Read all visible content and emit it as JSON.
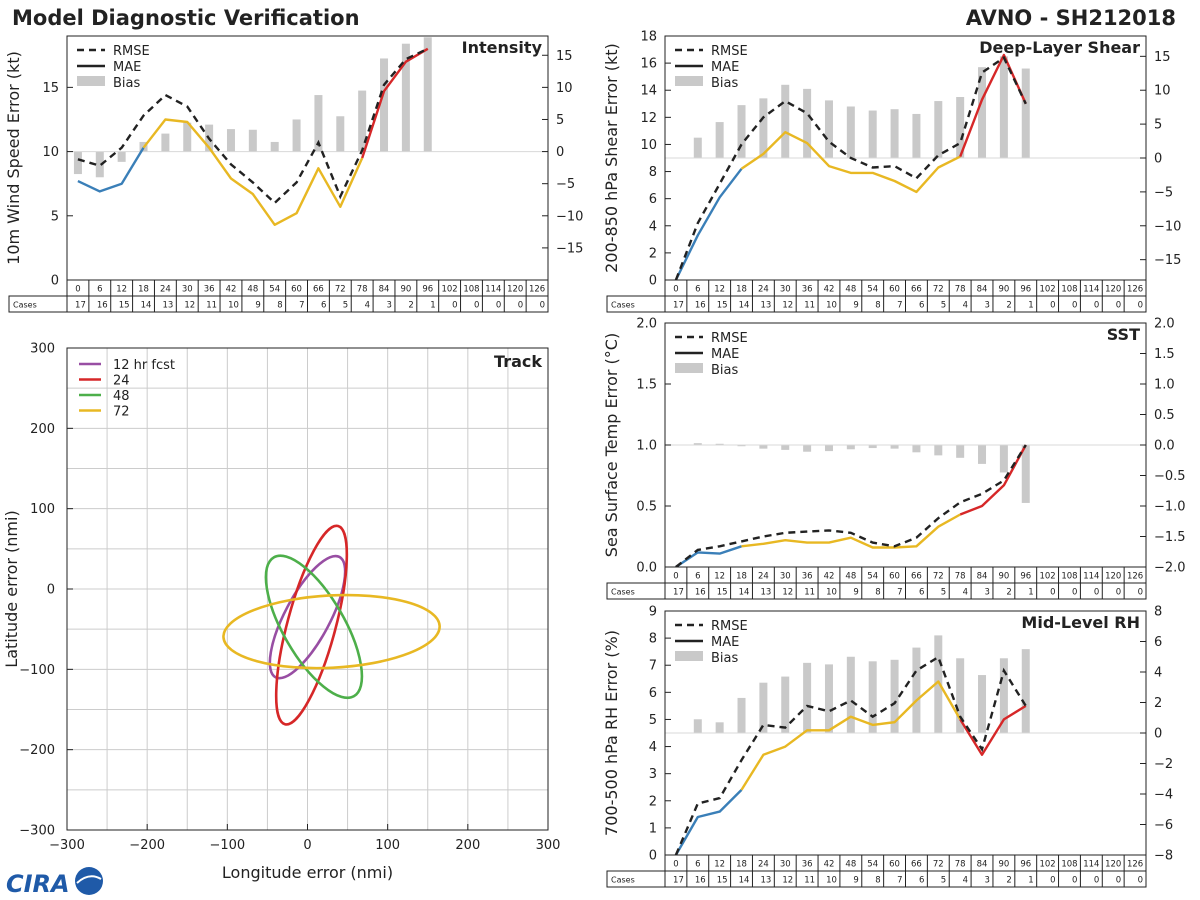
{
  "header": {
    "title": "Model Diagnostic Verification",
    "model_id": "AVNO - SH212018"
  },
  "forecast_hours": [
    "0",
    "6",
    "12",
    "18",
    "24",
    "30",
    "36",
    "42",
    "48",
    "54",
    "60",
    "66",
    "72",
    "78",
    "84",
    "90",
    "96",
    "102",
    "108",
    "114",
    "120",
    "126"
  ],
  "cases_label": "Cases",
  "cases": [
    17,
    16,
    15,
    14,
    13,
    12,
    11,
    10,
    9,
    8,
    7,
    6,
    5,
    4,
    3,
    2,
    1,
    0,
    0,
    0,
    0,
    0
  ],
  "legend": {
    "rmse": "RMSE",
    "mae": "MAE",
    "bias": "Bias"
  },
  "colors": {
    "rmse": "#222222",
    "mae_early": "#3a7fb8",
    "mae_mid": "#e8b823",
    "mae_late": "#d62728",
    "bias_bar": "#c9c9c9",
    "track_12": "#984ea3",
    "track_24": "#d62728",
    "track_48": "#4daf4a",
    "track_72": "#e8b823"
  },
  "logo_text": "CIRA",
  "chart_data": [
    {
      "id": "intensity",
      "type": "line",
      "title": "Intensity",
      "ylabel": "10m Wind Speed Error (kt)",
      "ylim": [
        0,
        19
      ],
      "yticks": [
        "0",
        "5",
        "10",
        "15"
      ],
      "yticks_values": [
        0,
        5,
        10,
        15
      ],
      "bias_lim": [
        -20,
        18
      ],
      "bias_ticks": [
        "−15",
        "−10",
        "−5",
        "0",
        "5",
        "10",
        "15"
      ],
      "bias_ticks_values": [
        -15,
        -10,
        -5,
        0,
        5,
        10,
        15
      ],
      "rmse": [
        9.4,
        8.9,
        10.3,
        12.8,
        14.4,
        13.5,
        11.0,
        9.0,
        7.6,
        6.0,
        7.6,
        10.7,
        6.5,
        10.1,
        15.2,
        17.2,
        18.0
      ],
      "mae": [
        7.7,
        6.9,
        7.5,
        10.3,
        12.5,
        12.3,
        10.3,
        7.9,
        6.7,
        4.3,
        5.2,
        8.7,
        5.7,
        9.5,
        14.7,
        17.0,
        18.0
      ],
      "bias": [
        -3.5,
        -4.0,
        -1.6,
        1.5,
        2.8,
        4.5,
        4.2,
        3.5,
        3.4,
        1.5,
        5.0,
        8.8,
        5.5,
        9.5,
        14.5,
        16.8,
        17.8
      ]
    },
    {
      "id": "shear",
      "type": "line",
      "title": "Deep-Layer Shear",
      "ylabel": "200-850 hPa Shear Error (kt)",
      "ylim": [
        0,
        18
      ],
      "yticks": [
        "0",
        "2",
        "4",
        "6",
        "8",
        "10",
        "12",
        "14",
        "16",
        "18"
      ],
      "yticks_values": [
        0,
        2,
        4,
        6,
        8,
        10,
        12,
        14,
        16,
        18
      ],
      "bias_lim": [
        -18,
        18
      ],
      "bias_ticks": [
        "−15",
        "−10",
        "−5",
        "0",
        "5",
        "10",
        "15"
      ],
      "bias_ticks_values": [
        -15,
        -10,
        -5,
        0,
        5,
        10,
        15
      ],
      "rmse": [
        0,
        4.2,
        7.1,
        10.0,
        12.0,
        13.2,
        12.3,
        10.2,
        9.0,
        8.3,
        8.4,
        7.5,
        9.2,
        10.1,
        15.3,
        16.4,
        13.0
      ],
      "mae": [
        0,
        3.3,
        6.1,
        8.2,
        9.3,
        10.9,
        10.1,
        8.4,
        7.9,
        7.9,
        7.3,
        6.5,
        8.3,
        9.1,
        13.3,
        16.6,
        13.0
      ],
      "bias": [
        0,
        3.0,
        5.3,
        7.8,
        8.8,
        10.8,
        10.2,
        8.5,
        7.6,
        7.0,
        7.2,
        6.5,
        8.4,
        9.0,
        13.4,
        15.0,
        13.2
      ]
    },
    {
      "id": "sst",
      "type": "line",
      "title": "SST",
      "ylabel": "Sea Surface Temp Error (°C)",
      "ylim": [
        0,
        2.0
      ],
      "yticks": [
        "0.0",
        "0.5",
        "1.0",
        "1.5",
        "2.0"
      ],
      "yticks_values": [
        0,
        0.5,
        1.0,
        1.5,
        2.0
      ],
      "bias_lim": [
        -2.0,
        2.0
      ],
      "bias_ticks": [
        "−2.0",
        "−1.5",
        "−1.0",
        "−0.5",
        "0.0",
        "0.5",
        "1.0",
        "1.5",
        "2.0"
      ],
      "bias_ticks_values": [
        -2.0,
        -1.5,
        -1.0,
        -0.5,
        0,
        0.5,
        1.0,
        1.5,
        2.0
      ],
      "rmse": [
        0,
        0.14,
        0.17,
        0.21,
        0.25,
        0.28,
        0.29,
        0.3,
        0.28,
        0.2,
        0.17,
        0.24,
        0.4,
        0.53,
        0.6,
        0.71,
        1.0
      ],
      "mae": [
        0,
        0.12,
        0.11,
        0.17,
        0.19,
        0.22,
        0.2,
        0.2,
        0.24,
        0.16,
        0.16,
        0.17,
        0.33,
        0.43,
        0.5,
        0.67,
        1.0
      ],
      "bias": [
        0,
        0.03,
        0.02,
        -0.02,
        -0.06,
        -0.08,
        -0.11,
        -0.1,
        -0.07,
        -0.05,
        -0.06,
        -0.12,
        -0.17,
        -0.21,
        -0.31,
        -0.45,
        -0.95
      ]
    },
    {
      "id": "rh",
      "type": "line",
      "title": "Mid-Level RH",
      "ylabel": "700-500 hPa RH Error (%)",
      "ylim": [
        0,
        9
      ],
      "yticks": [
        "0",
        "1",
        "2",
        "3",
        "4",
        "5",
        "6",
        "7",
        "8",
        "9"
      ],
      "yticks_values": [
        0,
        1,
        2,
        3,
        4,
        5,
        6,
        7,
        8,
        9
      ],
      "bias_lim": [
        -8,
        8
      ],
      "bias_ticks": [
        "−8",
        "−6",
        "−4",
        "−2",
        "0",
        "2",
        "4",
        "6",
        "8"
      ],
      "bias_ticks_values": [
        -8,
        -6,
        -4,
        -2,
        0,
        2,
        4,
        6,
        8
      ],
      "rmse": [
        0,
        1.9,
        2.1,
        3.5,
        4.8,
        4.7,
        5.5,
        5.3,
        5.7,
        5.1,
        5.6,
        6.8,
        7.3,
        5.1,
        3.9,
        6.8,
        5.5
      ],
      "mae": [
        0,
        1.4,
        1.6,
        2.4,
        3.7,
        4.0,
        4.6,
        4.6,
        5.1,
        4.8,
        4.9,
        5.7,
        6.4,
        5.0,
        3.7,
        5.0,
        5.5
      ],
      "bias": [
        0,
        0.9,
        0.7,
        2.3,
        3.3,
        3.7,
        4.6,
        4.5,
        5.0,
        4.7,
        4.8,
        5.6,
        6.4,
        4.9,
        3.8,
        4.9,
        5.5
      ]
    },
    {
      "id": "track",
      "type": "scatter",
      "title": "Track",
      "xlabel": "Longitude error (nmi)",
      "ylabel": "Latitude error (nmi)",
      "xlim": [
        -300,
        300
      ],
      "ylim": [
        -300,
        300
      ],
      "xticks": [
        "−300",
        "−200",
        "−100",
        "0",
        "100",
        "200",
        "300"
      ],
      "xticks_values": [
        -300,
        -200,
        -100,
        0,
        100,
        200,
        300
      ],
      "yticks": [
        "−300",
        "−200",
        "−100",
        "0",
        "100",
        "200",
        "300"
      ],
      "yticks_values": [
        -300,
        -200,
        -100,
        0,
        100,
        200,
        300
      ],
      "ellipses": [
        {
          "label": "12 hr fcst",
          "cx": 0,
          "cy": -35,
          "rx": 85,
          "ry": 28,
          "angle": -62
        },
        {
          "label": "24",
          "cx": 5,
          "cy": -45,
          "rx": 128,
          "ry": 30,
          "angle": -75
        },
        {
          "label": "48",
          "cx": 8,
          "cy": -47,
          "rx": 100,
          "ry": 38,
          "angle": 60
        },
        {
          "label": "72",
          "cx": 30,
          "cy": -53,
          "rx": 135,
          "ry": 45,
          "angle": -3
        }
      ]
    }
  ]
}
